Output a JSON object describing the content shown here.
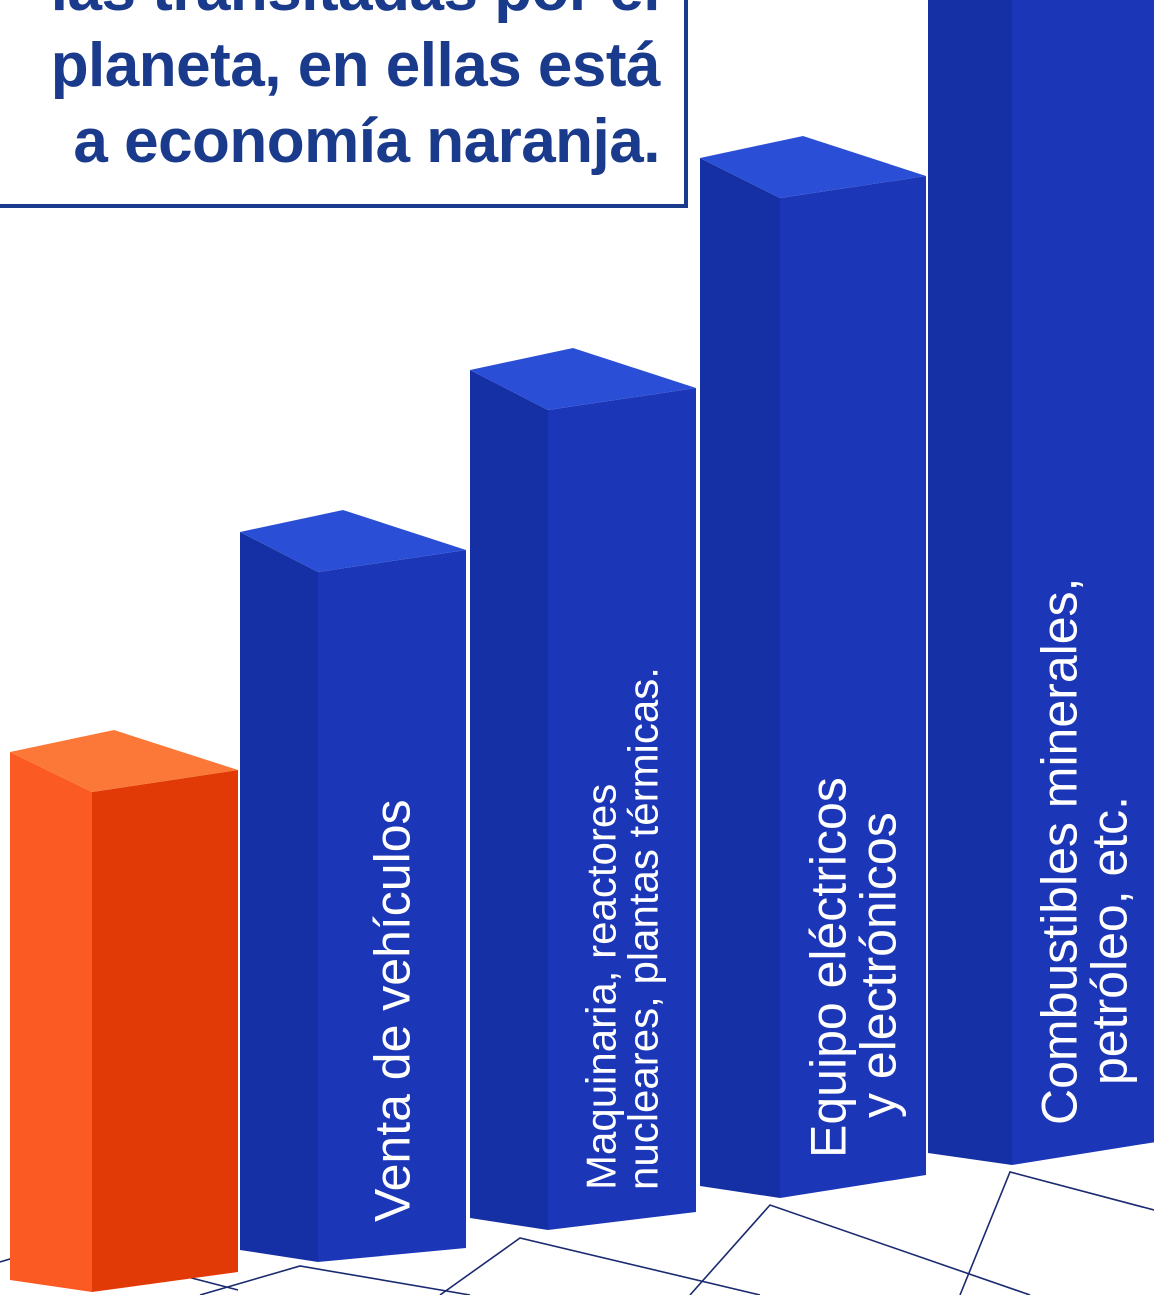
{
  "caption": {
    "lines": [
      "las transitadas por el",
      "planeta, en ellas está",
      "a economía naranja."
    ]
  },
  "colors": {
    "caption_text": "#1a3a8c",
    "caption_border": "#1a3a8c",
    "bar_blue_front": "#1c36b8",
    "bar_blue_side": "#1530a4",
    "bar_blue_top": "#2a4fd6",
    "bar_orange_front": "#e23a06",
    "bar_orange_side": "#fb5a22",
    "bar_orange_top": "#fc7838",
    "floor_line": "#1a2a70"
  },
  "chart_data": {
    "type": "bar",
    "style": "3d-columns",
    "title": "",
    "xlabel": "",
    "ylabel": "",
    "axes_visible": false,
    "grid": false,
    "legend": "none",
    "ylim": [
      0,
      1300
    ],
    "categories": [
      "",
      "Venta de vehículos",
      "Maquinaria, reactores nucleares, plantas térmicas.",
      "Equipo eléctricos y electrónicos",
      "Combustibles minerales, petróleo, etc."
    ],
    "category_lines": [
      [],
      [
        "Venta de vehículos"
      ],
      [
        "Maquinaria, reactores",
        "nucleares, plantas térmicas."
      ],
      [
        "Equipo eléctricos",
        "y electrónicos"
      ],
      [
        "Combustibles minerales,",
        "petróleo, etc."
      ]
    ],
    "values": [
      500,
      690,
      820,
      1000,
      1170
    ],
    "bar_colors": [
      "orange",
      "blue",
      "blue",
      "blue",
      "blue"
    ]
  }
}
